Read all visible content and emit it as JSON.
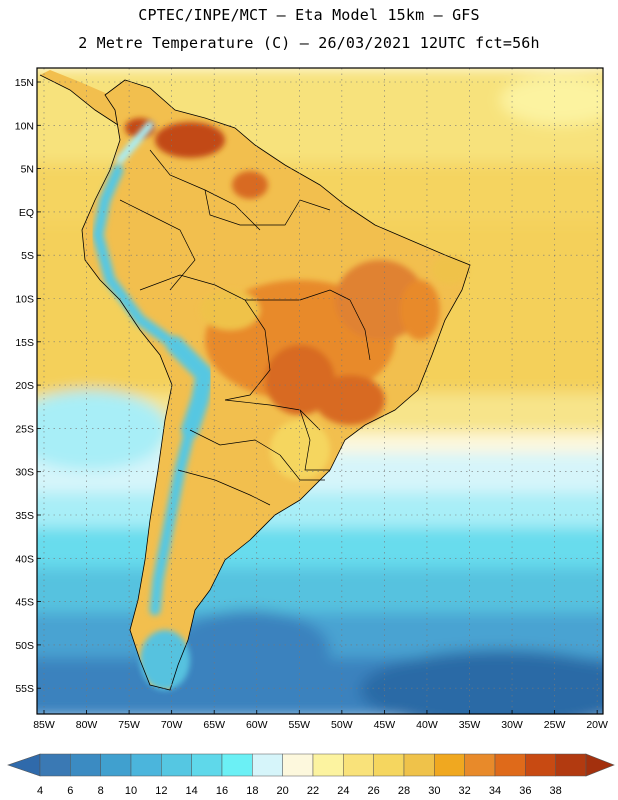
{
  "header": {
    "line1": "CPTEC/INPE/MCT –  Eta Model 15km – GFS",
    "line2": "2 Metre Temperature (C) – 26/03/2021 12UTC fct=56h"
  },
  "axes": {
    "lat_labels": [
      "15N",
      "10N",
      "5N",
      "EQ",
      "5S",
      "10S",
      "15S",
      "20S",
      "25S",
      "30S",
      "35S",
      "40S",
      "45S",
      "50S",
      "55S"
    ],
    "lon_labels": [
      "85W",
      "80W",
      "75W",
      "70W",
      "65W",
      "60W",
      "55W",
      "50W",
      "45W",
      "40W",
      "35W",
      "30W",
      "25W",
      "20W"
    ]
  },
  "colorbar": {
    "unit": "C",
    "labels": [
      "4",
      "6",
      "8",
      "10",
      "12",
      "14",
      "16",
      "18",
      "20",
      "22",
      "24",
      "26",
      "28",
      "30",
      "32",
      "34",
      "36",
      "38"
    ],
    "colors": [
      "#3a79b4",
      "#3b8bc2",
      "#40a0cf",
      "#4bb5dc",
      "#55c7e2",
      "#5fd8ea",
      "#6bf0f5",
      "#d6f5fa",
      "#fdf8dd",
      "#fcf3a0",
      "#f9e27a",
      "#f5d65f",
      "#efc24a",
      "#f0a820",
      "#e88a2a",
      "#df6a1a",
      "#c84a12",
      "#b23a10"
    ],
    "under_color": "#2f6aab",
    "over_color": "#a3300d"
  },
  "map": {
    "region": "South America",
    "ocean_colors": [
      "#2c6aa6",
      "#3a82be",
      "#4aa3d2",
      "#57c2df",
      "#67dced",
      "#a8eef7",
      "#fdf8dd",
      "#fcf3a0",
      "#f7e27c",
      "#f5d460"
    ],
    "land_warm": "#f2bf4e",
    "land_hot": "#d86a20",
    "land_hottest": "#c24a16",
    "andes_cold": "#57c7e2"
  }
}
